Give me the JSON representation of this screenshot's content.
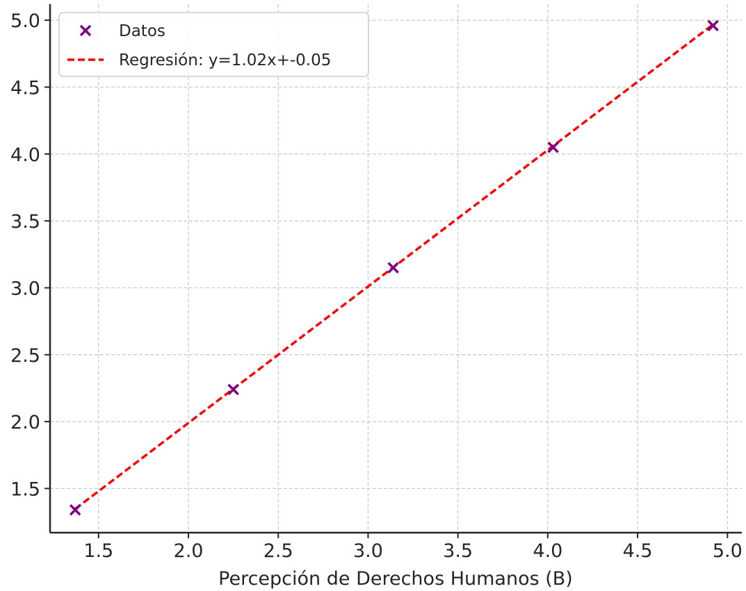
{
  "chart_data": {
    "type": "scatter",
    "title": "",
    "xlabel": "Percepción de Derechos Humanos (B)",
    "ylabel": "",
    "xlim": [
      1.23,
      5.08
    ],
    "ylim": [
      1.17,
      5.12
    ],
    "x_ticks": [
      "1.5",
      "2.0",
      "2.5",
      "3.0",
      "3.5",
      "4.0",
      "4.5",
      "5.0"
    ],
    "y_ticks": [
      "1.5",
      "2.0",
      "2.5",
      "3.0",
      "3.5",
      "4.0",
      "4.5",
      "5.0"
    ],
    "grid": true,
    "legend_position": "upper-left",
    "series": [
      {
        "name": "Datos",
        "kind": "scatter",
        "marker": "x",
        "color": "#800080",
        "x": [
          1.37,
          2.25,
          3.14,
          4.03,
          4.92
        ],
        "y": [
          1.34,
          2.24,
          3.15,
          4.05,
          4.96
        ]
      },
      {
        "name": "Regresión: y=1.02x+-0.05",
        "kind": "line",
        "style": "dashed",
        "color": "#ff0000",
        "slope": 1.02,
        "intercept": -0.05,
        "x_range": [
          1.37,
          4.92
        ]
      }
    ]
  }
}
